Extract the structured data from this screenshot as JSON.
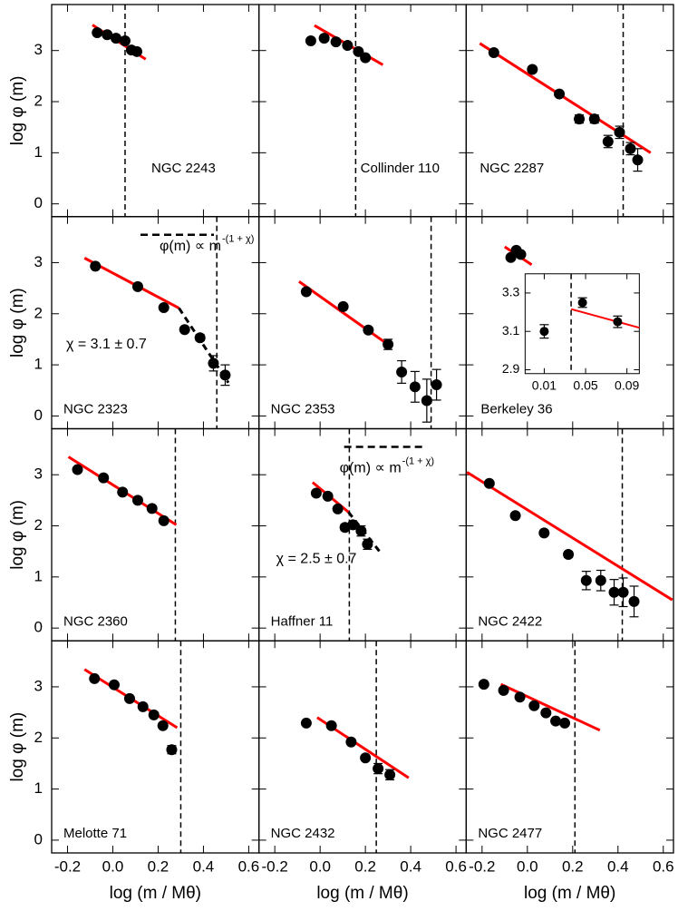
{
  "chart_data": {
    "type": "scatter",
    "xlabel": "log (m / Mθ)",
    "ylabel": "log φ (m)",
    "xlim": [
      -0.27,
      0.645
    ],
    "ylim": [
      -0.25,
      3.9
    ],
    "xticks": [
      -0.2,
      {
        "value": 0,
        "label": "0.0"
      },
      0.2,
      0.4,
      0.6
    ],
    "yticks": [
      0,
      1,
      2,
      3
    ],
    "point_color": "#000000",
    "fit_color": "#ff0000",
    "panels": [
      {
        "label": "NGC 2243",
        "x": [
          -0.069,
          -0.025,
          0.014,
          0.054,
          0.082,
          0.106
        ],
        "values": [
          3.35,
          3.31,
          3.24,
          3.19,
          3.01,
          2.98
        ],
        "fit": {
          "x": [
            -0.09,
            0.145
          ],
          "y": [
            3.5,
            2.83
          ]
        },
        "cutoff": 0.054
      },
      {
        "label": "Collinder 110",
        "x": [
          -0.041,
          0.018,
          0.07,
          0.121,
          0.169,
          0.2
        ],
        "values": [
          3.19,
          3.24,
          3.17,
          3.1,
          2.98,
          2.86
        ],
        "fit": {
          "x": [
            -0.025,
            0.277
          ],
          "y": [
            3.49,
            2.72
          ]
        },
        "cutoff": 0.157
      },
      {
        "label": "NGC 2287",
        "x": [
          -0.148,
          0.022,
          0.141,
          0.229,
          0.296,
          0.356,
          0.407,
          0.455,
          0.487
        ],
        "values": [
          2.96,
          2.63,
          2.15,
          1.66,
          1.66,
          1.22,
          1.4,
          1.08,
          0.86
        ],
        "errors": [
          null,
          null,
          null,
          0.08,
          0.08,
          0.12,
          0.12,
          0.12,
          0.22
        ],
        "fit": {
          "x": [
            -0.21,
            0.544
          ],
          "y": [
            3.14,
            1.0
          ]
        },
        "cutoff": 0.423
      },
      {
        "label": "NGC 2323",
        "x": [
          -0.077,
          0.11,
          0.225,
          0.317,
          0.385,
          0.444,
          0.496
        ],
        "values": [
          2.93,
          2.53,
          2.12,
          1.69,
          1.53,
          1.03,
          0.8
        ],
        "errors": [
          null,
          null,
          null,
          null,
          0.06,
          0.15,
          0.2
        ],
        "fit": {
          "x": [
            -0.125,
            0.292
          ],
          "y": [
            3.09,
            2.11
          ]
        },
        "steep_fit": {
          "x": [
            0.292,
            0.51
          ],
          "y": [
            2.11,
            0.65
          ]
        },
        "cutoff": 0.459,
        "formula": "φ(m) ∝ m",
        "formula_exponent": "-(1 + χ)",
        "chi_text": "χ = 3.1 ± 0.7"
      },
      {
        "label": "NGC 2353",
        "x": [
          -0.061,
          0.102,
          0.213,
          0.3,
          0.36,
          0.419,
          0.471,
          0.514
        ],
        "values": [
          2.43,
          2.14,
          1.68,
          1.4,
          0.86,
          0.57,
          0.3,
          0.61
        ],
        "errors": [
          null,
          null,
          null,
          0.1,
          0.22,
          0.3,
          0.42,
          0.3
        ],
        "fit": {
          "x": [
            -0.093,
            0.312
          ],
          "y": [
            2.63,
            1.36
          ]
        },
        "cutoff": 0.49
      },
      {
        "label": "Berkeley 36",
        "x": [
          -0.073,
          -0.049,
          -0.029
        ],
        "values": [
          3.1,
          3.24,
          3.16
        ],
        "fit": {
          "x": [
            -0.1,
            0.019
          ],
          "y": [
            3.31,
            2.96
          ]
        },
        "inset": {
          "xlim": [
            -0.0085,
            0.102
          ],
          "ylim": [
            2.88,
            3.4
          ],
          "xticks": [
            0.01,
            0.05,
            0.09
          ],
          "yticks": [
            2.9,
            3.1,
            3.3
          ],
          "x": [
            0.01,
            0.047,
            0.081
          ],
          "values": [
            3.1,
            3.25,
            3.15
          ],
          "errors": [
            0.035,
            0.025,
            0.03
          ],
          "fit": {
            "x": [
              0.036,
              0.102
            ],
            "y": [
              3.216,
              3.119
            ]
          },
          "cutoff": 0.036
        }
      },
      {
        "label": "NGC 2360",
        "x": [
          -0.156,
          -0.041,
          0.043,
          0.11,
          0.173,
          0.225
        ],
        "values": [
          3.1,
          2.94,
          2.66,
          2.5,
          2.34,
          2.1
        ],
        "fit": {
          "x": [
            -0.196,
            0.28
          ],
          "y": [
            3.35,
            2.02
          ]
        },
        "cutoff": 0.276
      },
      {
        "label": "Haffner 11",
        "x": [
          -0.017,
          0.034,
          0.078,
          0.11,
          0.145,
          0.181,
          0.209
        ],
        "values": [
          2.64,
          2.58,
          2.33,
          1.97,
          2.02,
          1.9,
          1.64
        ],
        "errors": [
          null,
          null,
          null,
          0.06,
          0.06,
          0.1,
          0.1
        ],
        "fit": {
          "x": [
            -0.033,
            0.125
          ],
          "y": [
            2.85,
            2.27
          ]
        },
        "steep_fit": {
          "x": [
            0.125,
            0.264
          ],
          "y": [
            2.27,
            1.49
          ]
        },
        "cutoff": 0.129,
        "formula": "φ(m) ∝ m",
        "formula_exponent": "-(1 + χ)",
        "chi_text": "χ = 2.5 ± 0.7"
      },
      {
        "label": "NGC 2422",
        "x": [
          -0.168,
          -0.053,
          0.074,
          0.181,
          0.26,
          0.324,
          0.383,
          0.423,
          0.471
        ],
        "values": [
          2.83,
          2.2,
          1.86,
          1.44,
          0.93,
          0.93,
          0.7,
          0.7,
          0.52
        ],
        "errors": [
          null,
          null,
          null,
          0.06,
          0.18,
          0.2,
          0.25,
          0.28,
          0.3
        ],
        "fit": {
          "x": [
            -0.267,
            0.64
          ],
          "y": [
            3.05,
            0.55
          ]
        },
        "cutoff": 0.419
      },
      {
        "label": "Melotte 71",
        "x": [
          -0.081,
          0.006,
          0.074,
          0.133,
          0.181,
          0.221,
          0.26
        ],
        "values": [
          3.16,
          3.04,
          2.77,
          2.61,
          2.45,
          2.24,
          1.77
        ],
        "errors": [
          null,
          null,
          null,
          null,
          null,
          null,
          0.08
        ],
        "fit": {
          "x": [
            -0.125,
            0.284
          ],
          "y": [
            3.34,
            2.2
          ]
        },
        "cutoff": 0.3
      },
      {
        "label": "NGC 2432",
        "x": [
          -0.061,
          0.05,
          0.137,
          0.2,
          0.256,
          0.308
        ],
        "values": [
          2.29,
          2.24,
          1.92,
          1.61,
          1.4,
          1.28
        ],
        "errors": [
          null,
          null,
          null,
          null,
          0.1,
          0.1
        ],
        "fit": {
          "x": [
            -0.013,
            0.391
          ],
          "y": [
            2.4,
            1.22
          ]
        },
        "cutoff": 0.248
      },
      {
        "label": "NGC 2477",
        "x": [
          -0.192,
          -0.105,
          -0.033,
          0.03,
          0.082,
          0.125,
          0.165
        ],
        "values": [
          3.05,
          2.93,
          2.8,
          2.63,
          2.49,
          2.33,
          2.29
        ],
        "fit": {
          "x": [
            -0.117,
            0.32
          ],
          "y": [
            3.05,
            2.15
          ]
        },
        "cutoff": 0.21
      }
    ]
  }
}
